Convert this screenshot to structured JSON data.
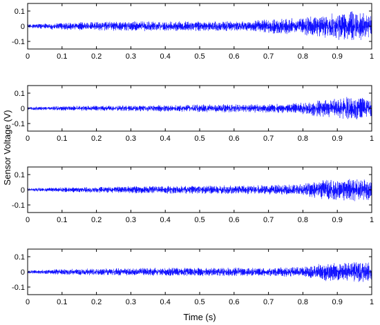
{
  "chart_data": {
    "type": "line",
    "layout": "4 vertically stacked subplots sharing x range",
    "xlabel": "Time (s)",
    "ylabel": "Sensor Voltage (V)",
    "xlim": [
      0,
      1
    ],
    "x_ticks": [
      "0",
      "0.1",
      "0.2",
      "0.3",
      "0.4",
      "0.5",
      "0.6",
      "0.7",
      "0.8",
      "0.9",
      "1"
    ],
    "line_color": "#0000ff",
    "grid": false,
    "subplots": [
      {
        "ylim": [
          -0.15,
          0.15
        ],
        "y_ticks": [
          "0.1",
          "0",
          "-0.1"
        ],
        "y_tick_values": [
          0.1,
          0,
          -0.1
        ],
        "envelope": {
          "t": [
            0,
            0.1,
            0.3,
            0.5,
            0.65,
            0.7,
            0.8,
            0.85,
            0.9,
            0.95,
            1.0
          ],
          "amp": [
            0.01,
            0.02,
            0.025,
            0.025,
            0.025,
            0.04,
            0.045,
            0.06,
            0.07,
            0.08,
            0.06
          ]
        }
      },
      {
        "ylim": [
          -0.15,
          0.15
        ],
        "y_ticks": [
          "0.1",
          "0",
          "-0.1"
        ],
        "y_tick_values": [
          0.1,
          0,
          -0.1
        ],
        "envelope": {
          "t": [
            0,
            0.1,
            0.3,
            0.5,
            0.7,
            0.8,
            0.85,
            0.9,
            0.95,
            1.0
          ],
          "amp": [
            0.008,
            0.012,
            0.015,
            0.02,
            0.022,
            0.03,
            0.045,
            0.05,
            0.065,
            0.05
          ]
        }
      },
      {
        "ylim": [
          -0.15,
          0.15
        ],
        "y_ticks": [
          "0.1",
          "0",
          "-0.1"
        ],
        "y_tick_values": [
          0.1,
          0,
          -0.1
        ],
        "envelope": {
          "t": [
            0,
            0.1,
            0.3,
            0.5,
            0.7,
            0.8,
            0.85,
            0.9,
            0.95,
            1.0
          ],
          "amp": [
            0.008,
            0.012,
            0.018,
            0.022,
            0.025,
            0.03,
            0.05,
            0.055,
            0.06,
            0.055
          ]
        }
      },
      {
        "ylim": [
          -0.15,
          0.15
        ],
        "y_ticks": [
          "0.1",
          "0",
          "-0.1"
        ],
        "y_tick_values": [
          0.1,
          0,
          -0.1
        ],
        "envelope": {
          "t": [
            0,
            0.1,
            0.3,
            0.5,
            0.7,
            0.8,
            0.85,
            0.9,
            0.95,
            1.0
          ],
          "amp": [
            0.008,
            0.015,
            0.02,
            0.022,
            0.022,
            0.028,
            0.045,
            0.05,
            0.055,
            0.05
          ]
        }
      }
    ]
  }
}
